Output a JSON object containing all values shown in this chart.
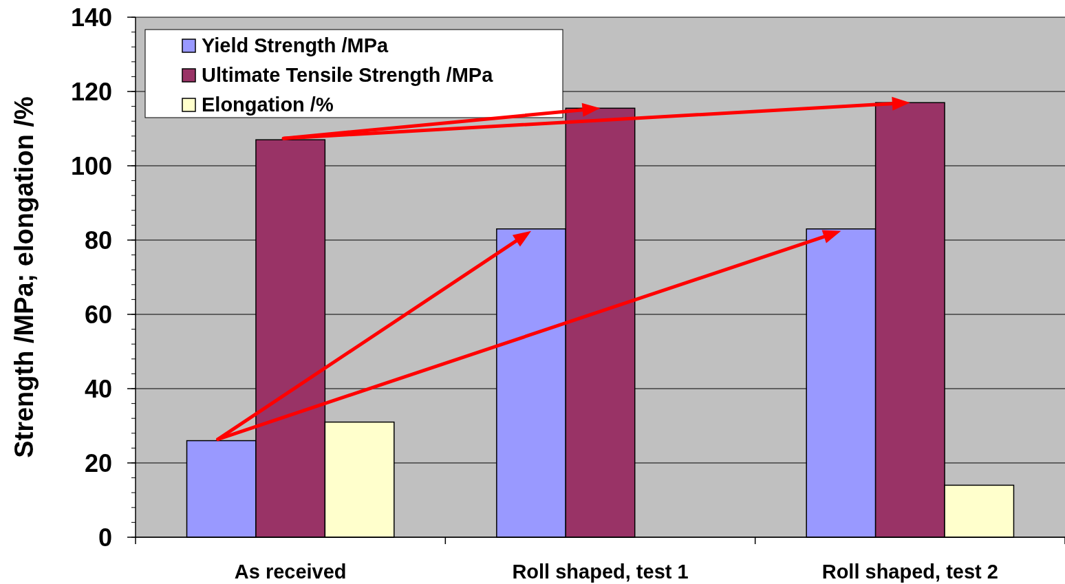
{
  "chart_data": {
    "type": "bar",
    "ylabel": "Strength /MPa; elongation /%",
    "categories": [
      "As received",
      "Roll shaped, test 1",
      "Roll shaped, test 2"
    ],
    "series": [
      {
        "name": "Yield Strength /MPa",
        "color": "#9999ff",
        "values": [
          26,
          83,
          83
        ]
      },
      {
        "name": "Ultimate Tensile Strength /MPa",
        "color": "#993366",
        "values": [
          107,
          115.5,
          117
        ]
      },
      {
        "name": "Elongation /%",
        "color": "#ffffcc",
        "values": [
          31,
          null,
          14
        ]
      }
    ],
    "ylim": [
      0,
      140
    ],
    "yticks": [
      0,
      20,
      40,
      60,
      80,
      100,
      120,
      140
    ],
    "grid": "y",
    "legend": "top left"
  }
}
